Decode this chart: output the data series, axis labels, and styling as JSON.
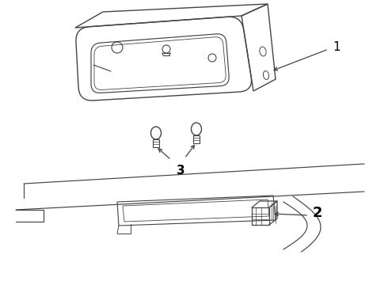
{
  "bg_color": "#ffffff",
  "line_color": "#444444",
  "label_color": "#000000",
  "label_1": "1",
  "label_2": "2",
  "label_3": "3"
}
